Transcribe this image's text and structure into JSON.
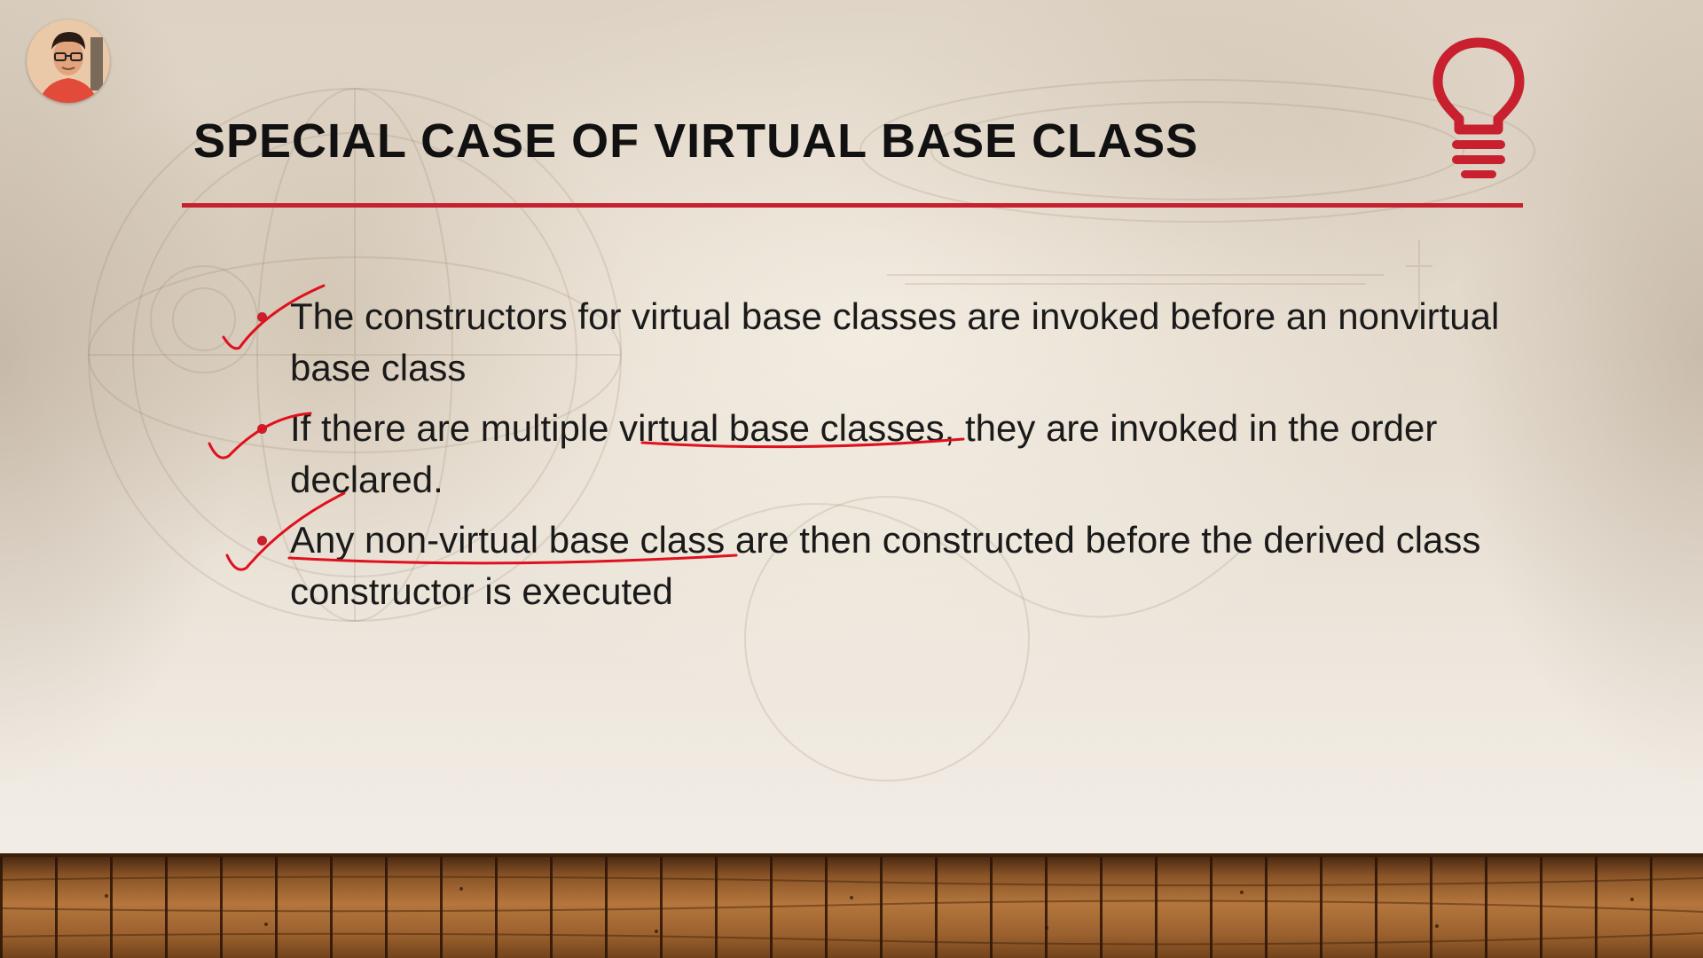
{
  "slide": {
    "title": "SPECIAL CASE OF VIRTUAL BASE CLASS",
    "accent_color": "#c8202f",
    "bullets": [
      {
        "text": "The constructors for virtual base classes are invoked before an nonvirtual base class"
      },
      {
        "before": "If there are multiple ",
        "underlined": "virtual base classes",
        "after": ", they are invoked in the order declared."
      },
      {
        "underlined": "Any non-virtual base class",
        "after": " are then constructed before the derived class constructor is executed"
      }
    ],
    "annotation_color": "#e0101e"
  },
  "icons": {
    "logo": "lightbulb-icon",
    "presenter": "presenter-avatar"
  }
}
